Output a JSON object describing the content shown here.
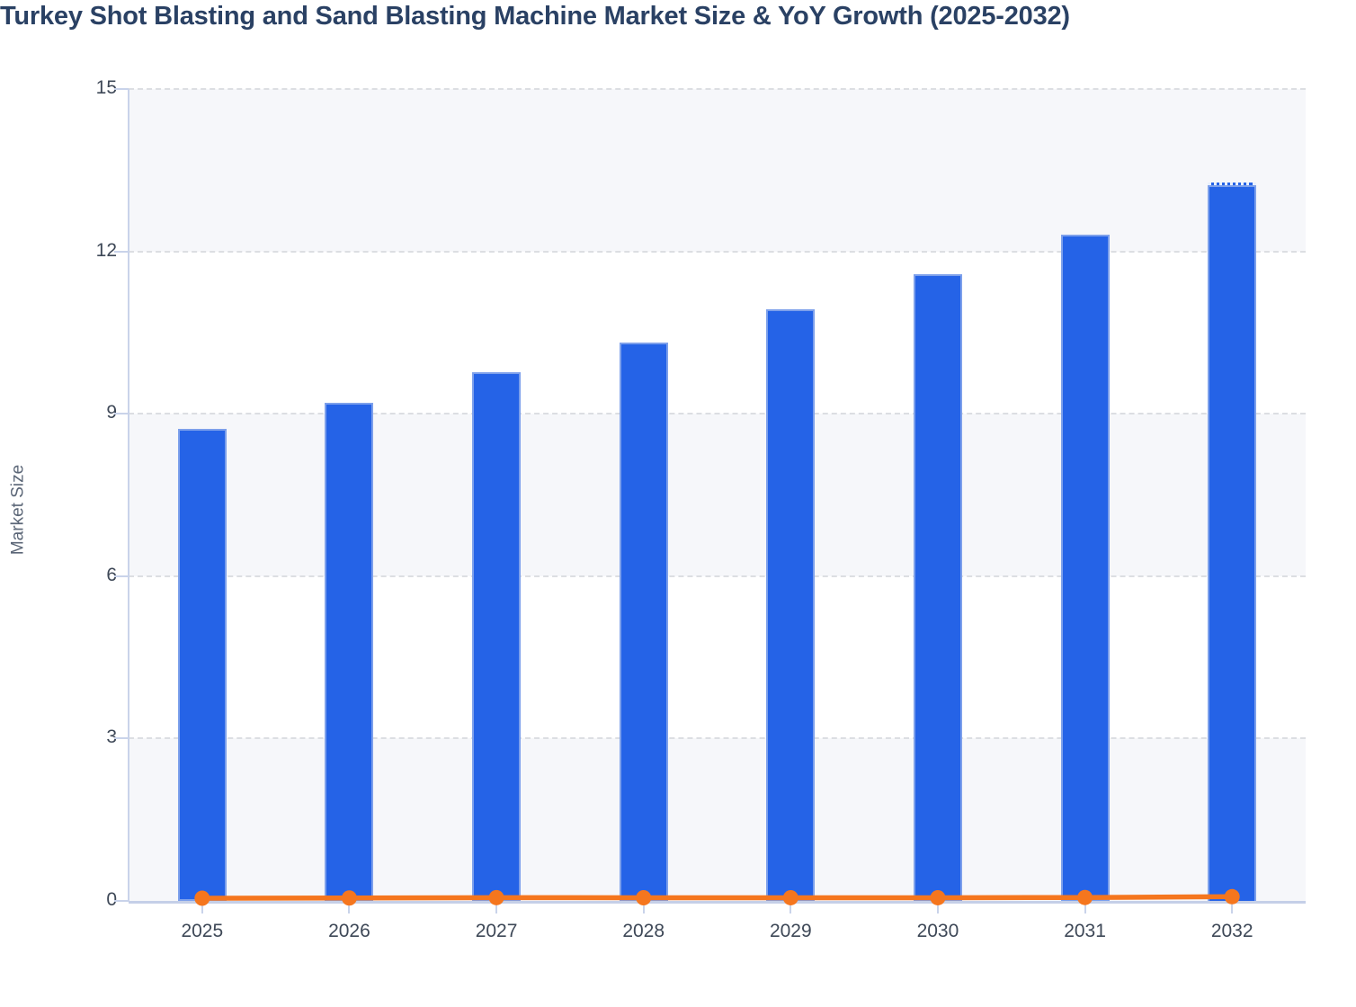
{
  "title": "Turkey Shot Blasting and Sand Blasting Machine Market Size & YoY Growth (2025-2032)",
  "colors": {
    "bar": "#2563e7",
    "line": "#f5761e",
    "title_text": "#2a4164",
    "axis_title_text": "#5b6677",
    "tick_label_text": "#3e4857",
    "axis_line": "#c9d3ea",
    "grid_line": "#dcdee2",
    "band_fill": "#f6f7fa",
    "background": "#ffffff"
  },
  "chart_data": {
    "type": "bar",
    "title": "Turkey Shot Blasting and Sand Blasting Machine Market Size & YoY Growth (2025-2032)",
    "categories": [
      "2025",
      "2026",
      "2027",
      "2028",
      "2029",
      "2030",
      "2031",
      "2032"
    ],
    "series": [
      {
        "name": "Market Size",
        "type": "bar",
        "values": [
          8.72,
          9.2,
          9.76,
          10.32,
          10.93,
          11.58,
          12.31,
          13.27
        ]
      },
      {
        "name": "YoY Growth",
        "type": "line",
        "values": [
          0.05,
          0.054,
          0.061,
          0.058,
          0.059,
          0.059,
          0.063,
          0.078
        ]
      }
    ],
    "xlabel": "",
    "ylabel": "Market Size",
    "ylim": [
      0,
      15
    ],
    "yticks": [
      0,
      3,
      6,
      9,
      12,
      15
    ],
    "grid": "horizontal-dashed",
    "split_bands_shaded": [
      [
        0,
        3
      ],
      [
        6,
        9
      ],
      [
        12,
        15
      ]
    ],
    "legend_position": "none",
    "last_bar_style": "dotted-top-forecast"
  }
}
